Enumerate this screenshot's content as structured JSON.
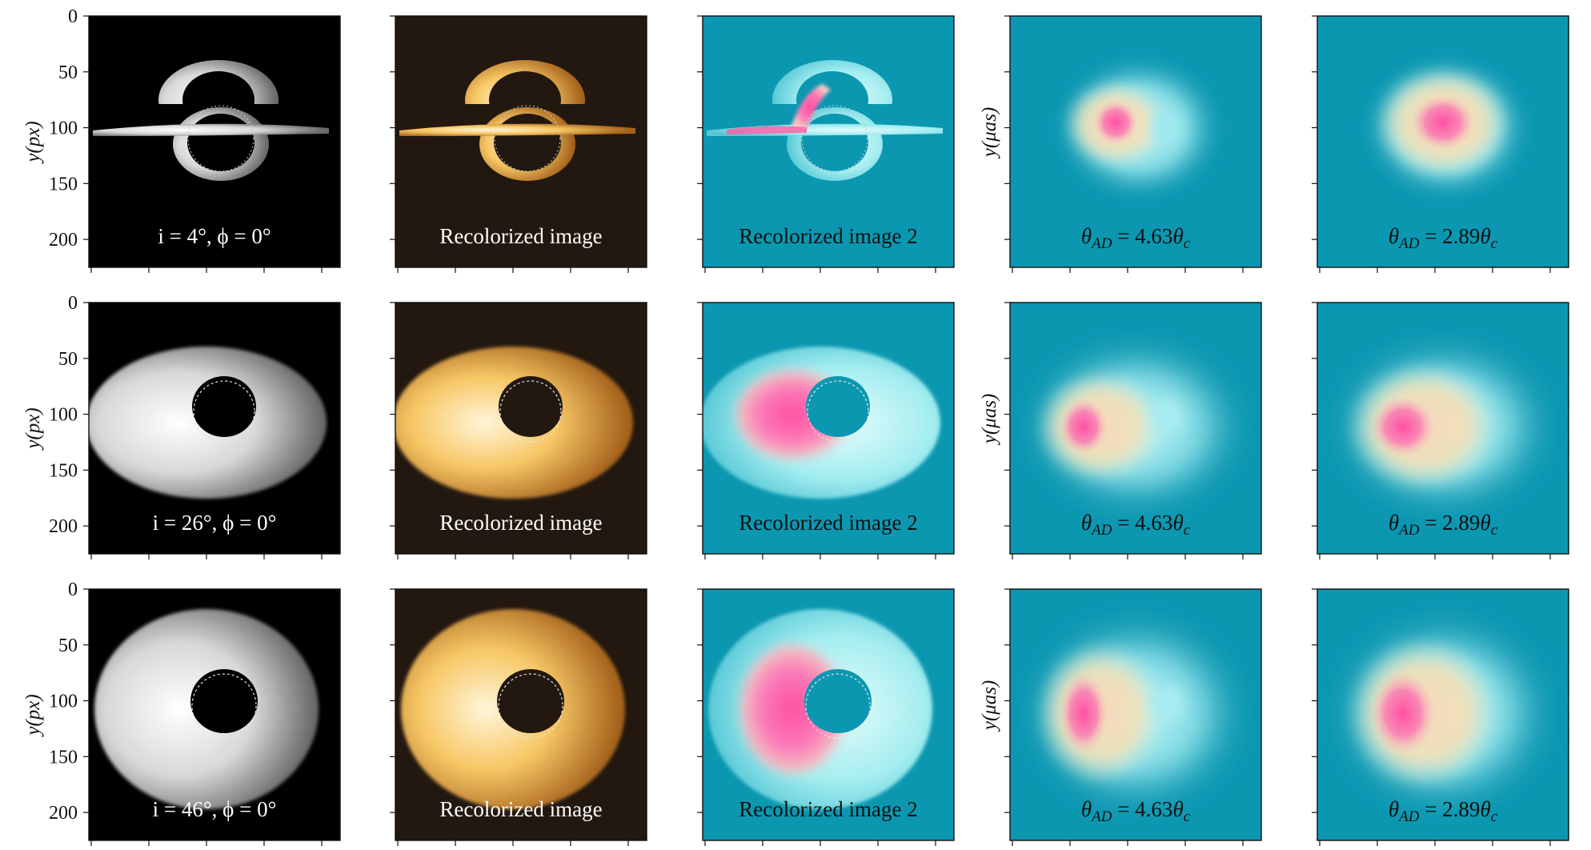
{
  "chart_data": {
    "type": "image_grid",
    "rows": [
      {
        "inclination_label": "i = 4°, ϕ = 0°",
        "disk": "thin"
      },
      {
        "inclination_label": "i = 26°, ϕ = 0°",
        "disk": "medium"
      },
      {
        "inclination_label": "i = 46°, ϕ = 0°",
        "disk": "wide"
      }
    ],
    "columns": [
      {
        "kind": "original",
        "label_source": "row"
      },
      {
        "kind": "recolor1",
        "label": "Recolorized image"
      },
      {
        "kind": "recolor2",
        "label": "Recolorized image 2"
      },
      {
        "kind": "blur1",
        "label": "θAD = 4.63θc"
      },
      {
        "kind": "blur2",
        "label": "θAD = 2.89θc"
      }
    ],
    "y_axis_px": {
      "label": "y(px)",
      "ticks": [
        0,
        50,
        100,
        150,
        200
      ],
      "range": [
        0,
        225
      ]
    },
    "y_axis_muas": {
      "label": "y(μas)"
    },
    "colors": {
      "background_original": "#000000",
      "background_recolor1": "#221810",
      "background_recolor2": "#0c97b1",
      "highlight_pink": "#ff5aa5",
      "glow_cream": "#f6dfaf",
      "glow_cyan": "#9cecf0",
      "gold": "#f4b848"
    }
  }
}
